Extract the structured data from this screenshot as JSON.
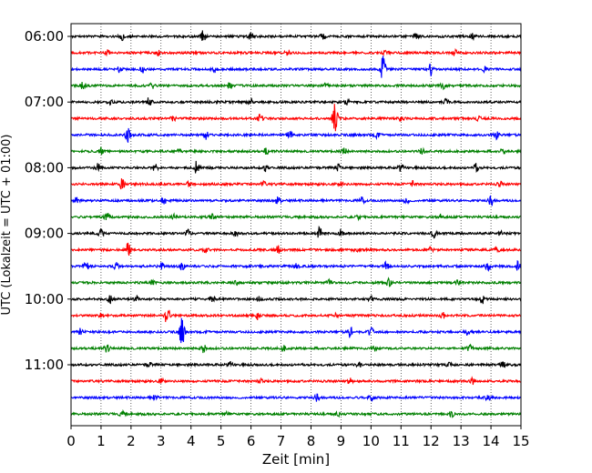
{
  "chart_data": {
    "type": "line",
    "xlabel": "Zeit  [min]",
    "ylabel": "UTC (Lokalzeit = UTC + 01:00)",
    "xlim": [
      0,
      15
    ],
    "x_ticks": [
      "0",
      "1",
      "2",
      "3",
      "4",
      "5",
      "6",
      "7",
      "8",
      "9",
      "10",
      "11",
      "12",
      "13",
      "14",
      "15"
    ],
    "y_tick_labels": [
      "06:00",
      "07:00",
      "08:00",
      "09:00",
      "10:00",
      "11:00"
    ],
    "grid": "vertical dotted",
    "series_colors": [
      "#000000",
      "#ff0000",
      "#0000ff",
      "#008000"
    ],
    "traces": [
      {
        "start": "06:00",
        "color": "#000000",
        "events": [
          [
            1.7,
            0.3
          ],
          [
            4.4,
            0.5
          ],
          [
            6.0,
            0.3
          ],
          [
            8.4,
            0.2
          ],
          [
            11.5,
            0.2
          ],
          [
            13.4,
            0.2
          ]
        ]
      },
      {
        "start": "06:15",
        "color": "#ff0000",
        "events": [
          [
            1.2,
            0.2
          ],
          [
            2.9,
            0.2
          ],
          [
            7.2,
            0.2
          ],
          [
            10.5,
            0.2
          ],
          [
            12.8,
            0.2
          ]
        ]
      },
      {
        "start": "06:30",
        "color": "#0000ff",
        "events": [
          [
            1.6,
            0.25
          ],
          [
            2.4,
            0.25
          ],
          [
            4.8,
            0.2
          ],
          [
            10.4,
            1.0
          ],
          [
            12.0,
            0.5
          ],
          [
            13.8,
            0.2
          ]
        ]
      },
      {
        "start": "06:45",
        "color": "#008000",
        "events": [
          [
            0.4,
            0.3
          ],
          [
            2.7,
            0.2
          ],
          [
            5.3,
            0.2
          ],
          [
            8.5,
            0.2
          ],
          [
            12.4,
            0.2
          ]
        ]
      },
      {
        "start": "07:00",
        "color": "#000000",
        "events": [
          [
            1.3,
            0.2
          ],
          [
            2.6,
            0.4
          ],
          [
            6.0,
            0.3
          ],
          [
            9.2,
            0.2
          ],
          [
            12.5,
            0.2
          ]
        ]
      },
      {
        "start": "07:15",
        "color": "#ff0000",
        "events": [
          [
            3.4,
            0.2
          ],
          [
            6.3,
            0.3
          ],
          [
            8.8,
            1.2
          ],
          [
            11.0,
            0.2
          ],
          [
            13.6,
            0.2
          ]
        ]
      },
      {
        "start": "07:30",
        "color": "#0000ff",
        "events": [
          [
            1.9,
            0.6
          ],
          [
            4.5,
            0.3
          ],
          [
            7.3,
            0.3
          ],
          [
            10.2,
            0.2
          ],
          [
            14.2,
            0.3
          ]
        ]
      },
      {
        "start": "07:45",
        "color": "#008000",
        "events": [
          [
            1.0,
            0.3
          ],
          [
            3.6,
            0.2
          ],
          [
            6.5,
            0.2
          ],
          [
            9.1,
            0.3
          ],
          [
            11.7,
            0.2
          ],
          [
            14.4,
            0.2
          ]
        ]
      },
      {
        "start": "08:00",
        "color": "#000000",
        "events": [
          [
            0.9,
            0.3
          ],
          [
            2.8,
            0.3
          ],
          [
            4.2,
            0.6
          ],
          [
            6.5,
            0.3
          ],
          [
            8.9,
            0.3
          ],
          [
            11.0,
            0.3
          ],
          [
            13.5,
            0.3
          ]
        ]
      },
      {
        "start": "08:15",
        "color": "#ff0000",
        "events": [
          [
            1.7,
            0.4
          ],
          [
            3.9,
            0.2
          ],
          [
            6.4,
            0.2
          ],
          [
            9.0,
            0.2
          ],
          [
            11.4,
            0.2
          ],
          [
            14.3,
            0.2
          ]
        ]
      },
      {
        "start": "08:30",
        "color": "#0000ff",
        "events": [
          [
            0.2,
            0.3
          ],
          [
            3.1,
            0.3
          ],
          [
            6.9,
            0.3
          ],
          [
            9.7,
            0.3
          ],
          [
            11.2,
            0.3
          ],
          [
            14.0,
            0.4
          ]
        ]
      },
      {
        "start": "08:45",
        "color": "#008000",
        "events": [
          [
            1.2,
            0.4
          ],
          [
            3.4,
            0.2
          ],
          [
            4.7,
            0.2
          ],
          [
            9.6,
            0.2
          ],
          [
            12.3,
            0.2
          ]
        ]
      },
      {
        "start": "09:00",
        "color": "#000000",
        "events": [
          [
            1.0,
            0.3
          ],
          [
            3.9,
            0.3
          ],
          [
            5.5,
            0.2
          ],
          [
            8.3,
            0.5
          ],
          [
            9.0,
            0.3
          ],
          [
            12.1,
            0.3
          ],
          [
            14.3,
            0.2
          ]
        ]
      },
      {
        "start": "09:15",
        "color": "#ff0000",
        "events": [
          [
            1.9,
            0.6
          ],
          [
            4.5,
            0.3
          ],
          [
            6.9,
            0.3
          ],
          [
            9.5,
            0.2
          ],
          [
            12.0,
            0.2
          ],
          [
            14.2,
            0.2
          ]
        ]
      },
      {
        "start": "09:30",
        "color": "#0000ff",
        "events": [
          [
            0.5,
            0.3
          ],
          [
            1.5,
            0.3
          ],
          [
            3.0,
            0.3
          ],
          [
            3.7,
            0.3
          ],
          [
            7.5,
            0.3
          ],
          [
            10.5,
            0.3
          ],
          [
            13.9,
            0.4
          ],
          [
            14.9,
            0.4
          ]
        ]
      },
      {
        "start": "09:45",
        "color": "#008000",
        "events": [
          [
            2.7,
            0.2
          ],
          [
            5.5,
            0.2
          ],
          [
            8.6,
            0.2
          ],
          [
            10.6,
            0.3
          ],
          [
            12.9,
            0.2
          ]
        ]
      },
      {
        "start": "10:00",
        "color": "#000000",
        "events": [
          [
            1.3,
            0.3
          ],
          [
            2.2,
            0.3
          ],
          [
            4.7,
            0.3
          ],
          [
            6.3,
            0.2
          ],
          [
            10.0,
            0.2
          ],
          [
            13.7,
            0.4
          ]
        ]
      },
      {
        "start": "10:15",
        "color": "#ff0000",
        "events": [
          [
            1.0,
            0.2
          ],
          [
            3.2,
            0.7
          ],
          [
            6.2,
            0.3
          ],
          [
            8.8,
            0.2
          ],
          [
            12.4,
            0.2
          ]
        ]
      },
      {
        "start": "10:30",
        "color": "#0000ff",
        "events": [
          [
            0.3,
            0.3
          ],
          [
            3.7,
            1.2
          ],
          [
            9.3,
            0.5
          ],
          [
            10.0,
            0.3
          ],
          [
            13.2,
            0.2
          ]
        ]
      },
      {
        "start": "10:45",
        "color": "#008000",
        "events": [
          [
            1.2,
            0.3
          ],
          [
            4.4,
            0.4
          ],
          [
            7.1,
            0.2
          ],
          [
            10.1,
            0.2
          ],
          [
            13.3,
            0.3
          ]
        ]
      },
      {
        "start": "11:00",
        "color": "#000000",
        "events": [
          [
            2.6,
            0.2
          ],
          [
            5.3,
            0.2
          ],
          [
            9.6,
            0.2
          ],
          [
            12.6,
            0.2
          ],
          [
            14.4,
            0.2
          ]
        ]
      },
      {
        "start": "11:15",
        "color": "#ff0000",
        "events": [
          [
            3.0,
            0.2
          ],
          [
            6.3,
            0.2
          ],
          [
            9.3,
            0.2
          ],
          [
            13.4,
            0.3
          ]
        ]
      },
      {
        "start": "11:30",
        "color": "#0000ff",
        "events": [
          [
            2.8,
            0.2
          ],
          [
            8.2,
            0.3
          ],
          [
            10.0,
            0.4
          ],
          [
            13.9,
            0.2
          ]
        ]
      },
      {
        "start": "11:45",
        "color": "#008000",
        "events": [
          [
            1.7,
            0.2
          ],
          [
            5.2,
            0.2
          ],
          [
            8.9,
            0.2
          ],
          [
            12.7,
            0.2
          ]
        ]
      }
    ]
  }
}
